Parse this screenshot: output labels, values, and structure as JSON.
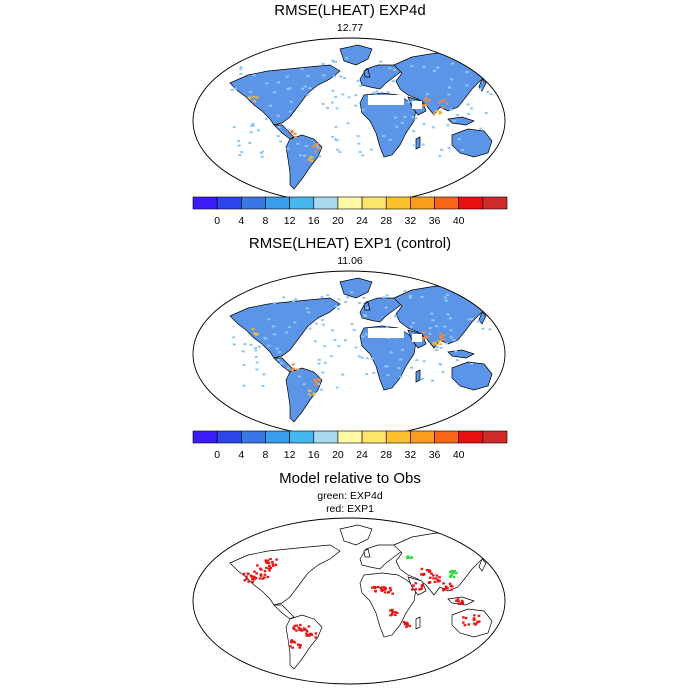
{
  "panels": [
    {
      "title": "RMSE(LHEAT) EXP4d",
      "subtitle": "12.77"
    },
    {
      "title": "RMSE(LHEAT) EXP1 (control)",
      "subtitle": "11.06"
    }
  ],
  "colorbar": {
    "labels": [
      "0",
      "4",
      "8",
      "12",
      "16",
      "20",
      "24",
      "28",
      "32",
      "36",
      "40"
    ],
    "colors": [
      "#3b1dfb",
      "#2a45ea",
      "#3a76e6",
      "#3a9cec",
      "#45b8f0",
      "#a9d8ef",
      "#fdf8a6",
      "#fde56a",
      "#fcc12c",
      "#fb9d1c",
      "#f9651a",
      "#ea0e0e",
      "#cf2b2b"
    ]
  },
  "comparison": {
    "title": "Model relative to Obs",
    "legend_green": "green: EXP4d",
    "legend_red": "red: EXP1"
  },
  "colors": {
    "land_fill": "#5c95e8",
    "land_fill_light": "#8fc7f2",
    "hot_cell": "#f0b63a",
    "red_cell": "#e81414",
    "green_cell": "#2fd82f",
    "coast": "#000000"
  }
}
